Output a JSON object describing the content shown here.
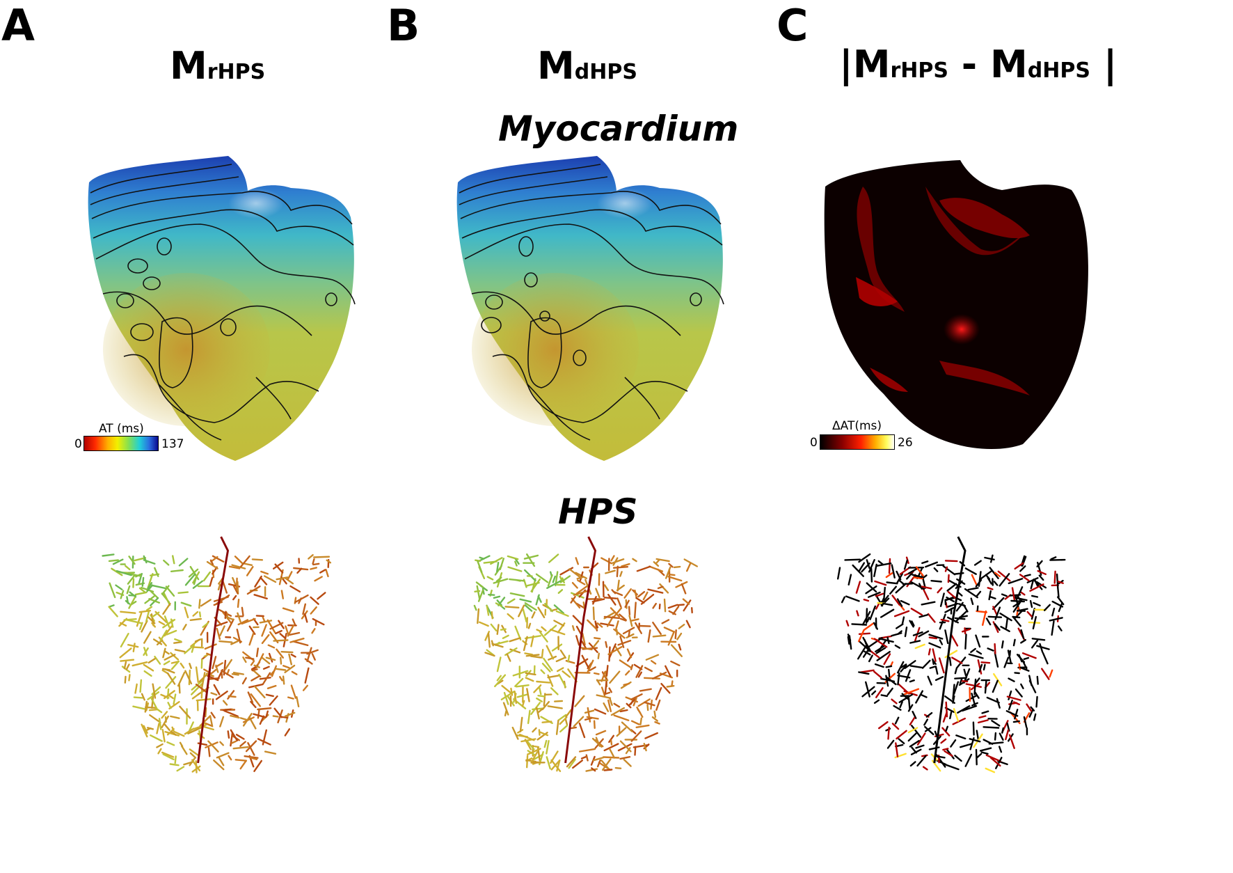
{
  "panels": {
    "a": {
      "letter": "A",
      "title_main": "M",
      "title_sub": "rHPS",
      "colorbar": {
        "label": "AT (ms)",
        "min": "0",
        "max": "137"
      }
    },
    "b": {
      "letter": "B",
      "title_main": "M",
      "title_sub": "dHPS"
    },
    "c": {
      "letter": "C",
      "title_open": "|",
      "title_main1": "M",
      "title_sub1": "rHPS",
      "title_minus": " - ",
      "title_main2": "M",
      "title_sub2": "dHPS",
      "title_close": " |",
      "colorbar": {
        "label": "ΔAT(ms)",
        "min": "0",
        "max": "26"
      }
    }
  },
  "row_titles": {
    "myocardium": "Myocardium",
    "hps": "HPS"
  },
  "colors": {
    "at_colormap": [
      "#c40000",
      "#ff3a00",
      "#ffb000",
      "#f4f000",
      "#8fe048",
      "#29d2c8",
      "#2a7fe0",
      "#10129a"
    ],
    "delta_at_colormap": [
      "#000000",
      "#5a0000",
      "#c80000",
      "#ff4000",
      "#ffc000",
      "#ffff60",
      "#ffffff"
    ],
    "heart_top_blue": "#2f64c8",
    "heart_mid_cyan": "#49c4c8",
    "heart_lower_yellow": "#c6c83a",
    "heart_core_orange": "#c79a2e",
    "diff_dark": "#0a0000",
    "diff_red": "#a00000"
  }
}
